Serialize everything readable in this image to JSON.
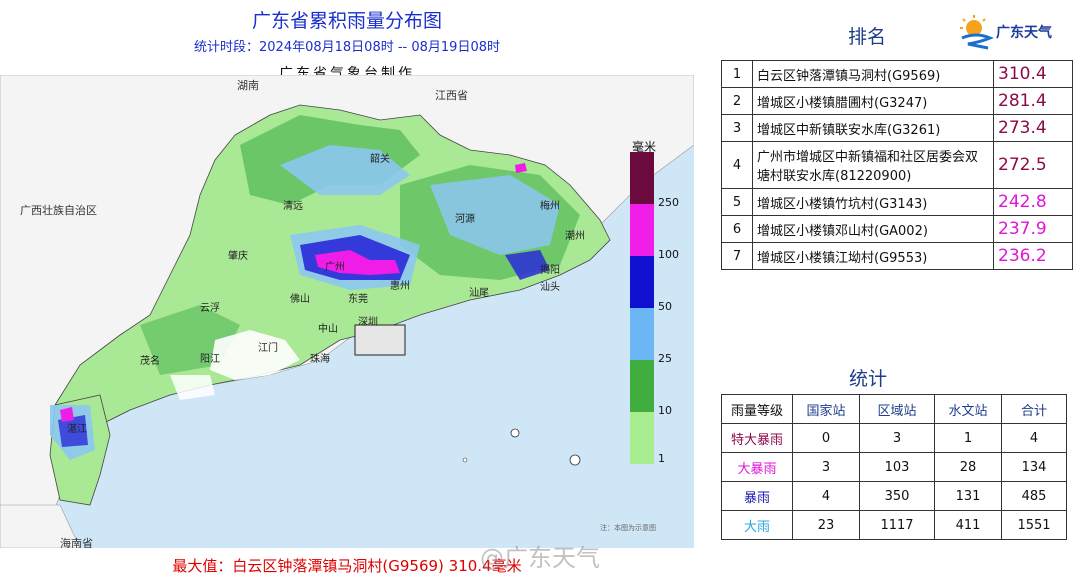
{
  "map": {
    "title": "广东省累积雨量分布图",
    "period": "统计时段：2024年08月18日08时  --  08月19日08时",
    "maker": "广东省气象台制作",
    "max_line": "最大值：白云区钟落潭镇马洞村(G9569) 310.4毫米",
    "note": "注：本图为示意图",
    "watermark": "@广东天气",
    "places": {
      "guangxi": "广西壮族自治区",
      "jiangxi": "江西省",
      "hunan": "湖南",
      "hainan": "海南省",
      "shaoguan": "韶关",
      "qingyuan": "清远",
      "zhaoqing": "肇庆",
      "heyuan": "河源",
      "meizhou": "梅州",
      "chaozhou": "潮州",
      "guangzhou": "广州",
      "huizhou": "惠州",
      "dongguan": "东莞",
      "shanwei": "汕尾",
      "jieyang": "揭阳",
      "shantou": "汕头",
      "yunfu": "云浮",
      "foshan": "佛山",
      "zhongshan": "中山",
      "jiangmen": "江门",
      "zhuhai": "珠海",
      "shenzhen": "深圳",
      "maoming": "茂名",
      "yangjiang": "阳江",
      "zhanjiang": "湛江"
    },
    "legend": {
      "unit": "毫米",
      "ticks": [
        "250",
        "100",
        "50",
        "25",
        "10",
        "1"
      ],
      "colors": [
        "#6b0a3c",
        "#f01de8",
        "#1010d0",
        "#6cb6f5",
        "#3fae3f",
        "#a8ee90"
      ]
    }
  },
  "brand": {
    "logo_text": "广东天气"
  },
  "ranking": {
    "title": "排名",
    "rows": [
      {
        "no": "1",
        "name": "白云区钟落潭镇马洞村(G9569)",
        "value": "310.4",
        "color": "#8b0a4a"
      },
      {
        "no": "2",
        "name": "增城区小楼镇腊圃村(G3247)",
        "value": "281.4",
        "color": "#8b0a4a"
      },
      {
        "no": "3",
        "name": "增城区中新镇联安水库(G3261)",
        "value": "273.4",
        "color": "#8b0a4a"
      },
      {
        "no": "4",
        "name": "广州市增城区中新镇福和社区居委会双塘村联安水库(81220900)",
        "value": "272.5",
        "color": "#8b0a4a"
      },
      {
        "no": "5",
        "name": "增城区小楼镇竹坑村(G3143)",
        "value": "242.8",
        "color": "#e014d8"
      },
      {
        "no": "6",
        "name": "增城区小楼镇邓山村(GA002)",
        "value": "237.9",
        "color": "#e014d8"
      },
      {
        "no": "7",
        "name": "增城区小楼镇江坳村(G9553)",
        "value": "236.2",
        "color": "#e014d8"
      }
    ]
  },
  "stats": {
    "title": "统计",
    "headers": [
      "雨量等级",
      "国家站",
      "区域站",
      "水文站",
      "合计"
    ],
    "rows": [
      {
        "level": "特大暴雨",
        "color": "#8b0a4a",
        "cells": [
          "0",
          "3",
          "1",
          "4"
        ]
      },
      {
        "level": "大暴雨",
        "color": "#e014d8",
        "cells": [
          "3",
          "103",
          "28",
          "134"
        ]
      },
      {
        "level": "暴雨",
        "color": "#1a1ab0",
        "cells": [
          "4",
          "350",
          "131",
          "485"
        ]
      },
      {
        "level": "大雨",
        "color": "#2aa8e0",
        "cells": [
          "23",
          "1117",
          "411",
          "1551"
        ]
      }
    ]
  }
}
